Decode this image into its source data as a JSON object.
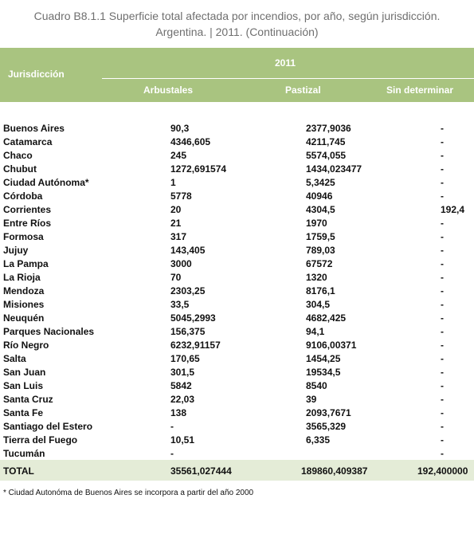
{
  "header": {
    "title_line1": "Cuadro B8.1.1 Superficie total afectada por incendios, por año, según jurisdicción.",
    "title_line2": "Argentina. | 2011. (Continuación)"
  },
  "table": {
    "column_header": "Jurisdicción",
    "year": "2011",
    "subheaders": [
      "Arbustales",
      "Pastizal",
      "Sin determinar"
    ],
    "rows": [
      [
        "Buenos Aires",
        "90,3",
        "2377,9036",
        "-"
      ],
      [
        "Catamarca",
        "4346,605",
        "4211,745",
        "-"
      ],
      [
        "Chaco",
        "245",
        "5574,055",
        "-"
      ],
      [
        "Chubut",
        "1272,691574",
        "1434,023477",
        "-"
      ],
      [
        "Ciudad Autónoma*",
        "1",
        "5,3425",
        "-"
      ],
      [
        "Córdoba",
        "5778",
        "40946",
        "-"
      ],
      [
        "Corrientes",
        "20",
        "4304,5",
        "192,4"
      ],
      [
        "Entre Ríos",
        "21",
        "1970",
        "-"
      ],
      [
        "Formosa",
        "317",
        "1759,5",
        "-"
      ],
      [
        "Jujuy",
        "143,405",
        "789,03",
        "-"
      ],
      [
        "La Pampa",
        "3000",
        "67572",
        "-"
      ],
      [
        "La Rioja",
        "70",
        "1320",
        "-"
      ],
      [
        "Mendoza",
        "2303,25",
        "8176,1",
        "-"
      ],
      [
        "Misiones",
        "33,5",
        "304,5",
        "-"
      ],
      [
        "Neuquén",
        "5045,2993",
        "4682,425",
        "-"
      ],
      [
        "Parques Nacionales",
        "156,375",
        "94,1",
        "-"
      ],
      [
        "Río Negro",
        "6232,91157",
        "9106,00371",
        "-"
      ],
      [
        "Salta",
        "170,65",
        "1454,25",
        "-"
      ],
      [
        "San Juan",
        "301,5",
        "19534,5",
        "-"
      ],
      [
        "San Luis",
        "5842",
        "8540",
        "-"
      ],
      [
        "Santa Cruz",
        "22,03",
        "39",
        "-"
      ],
      [
        "Santa Fe",
        "138",
        "2093,7671",
        "-"
      ],
      [
        "Santiago del Estero",
        "-",
        "3565,329",
        "-"
      ],
      [
        "Tierra del Fuego",
        "10,51",
        "6,335",
        "-"
      ],
      [
        "Tucumán",
        "-",
        null,
        "-"
      ]
    ],
    "total": [
      "TOTAL",
      "35561,027444",
      "189860,409387",
      "192,400000"
    ]
  },
  "footnote": "* Ciudad Autonóma de Buenos Aires se incorpora a partir del año 2000"
}
